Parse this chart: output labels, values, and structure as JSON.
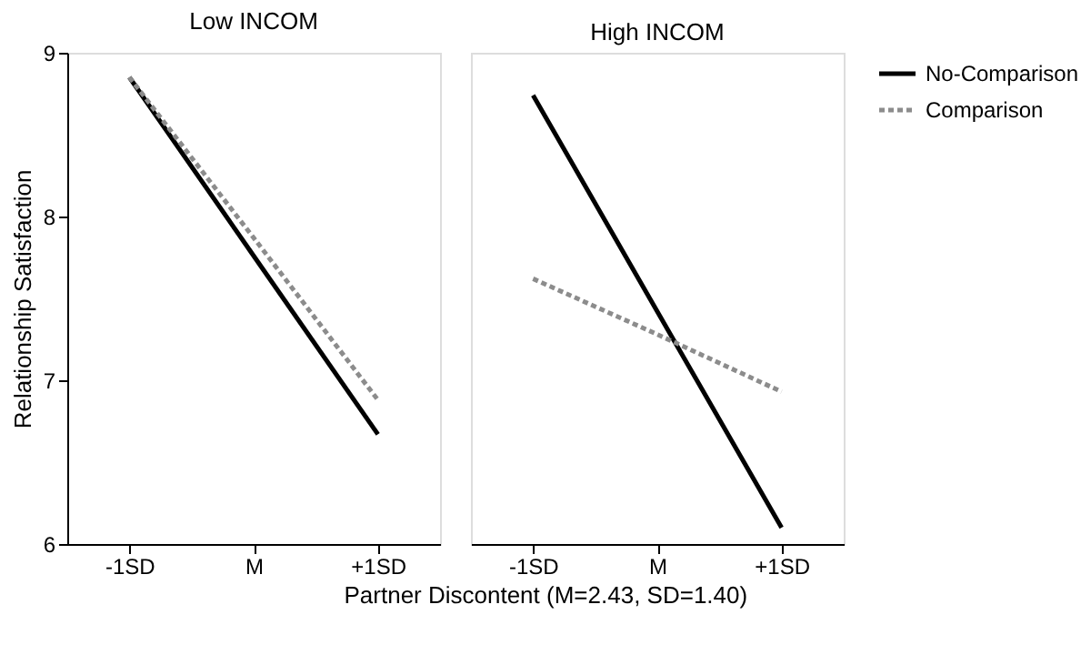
{
  "chart_data": [
    {
      "type": "line",
      "title": "Low INCOM",
      "xlabel": "Partner Discontent (M=2.43, SD=1.40)",
      "ylabel": "Relationship Satisfaction",
      "categories": [
        "-1SD",
        "M",
        "+1SD"
      ],
      "ylim": [
        6,
        9
      ],
      "yticks": [
        6,
        7,
        8,
        9
      ],
      "grid": false,
      "series": [
        {
          "color": "#000000",
          "line_style": "solid",
          "values": [
            8.85,
            7.76,
            6.67
          ]
        },
        {
          "color": "#8c8c8c",
          "line_style": "dashed",
          "values": [
            8.85,
            7.87,
            6.88
          ]
        }
      ]
    },
    {
      "type": "line",
      "title": "High INCOM",
      "categories": [
        "-1SD",
        "M",
        "+1SD"
      ],
      "ylim": [
        6,
        9
      ],
      "yticks": [
        6,
        7,
        8,
        9
      ],
      "grid": false,
      "legend": "right",
      "tick_labels": "x",
      "series": [
        {
          "name": "No-Comparison",
          "color": "#000000",
          "line_style": "solid",
          "values": [
            8.74,
            7.42,
            6.1
          ]
        },
        {
          "name": "Comparison",
          "color": "#8c8c8c",
          "line_style": "dashed",
          "values": [
            7.62,
            7.28,
            6.93
          ]
        }
      ]
    }
  ]
}
